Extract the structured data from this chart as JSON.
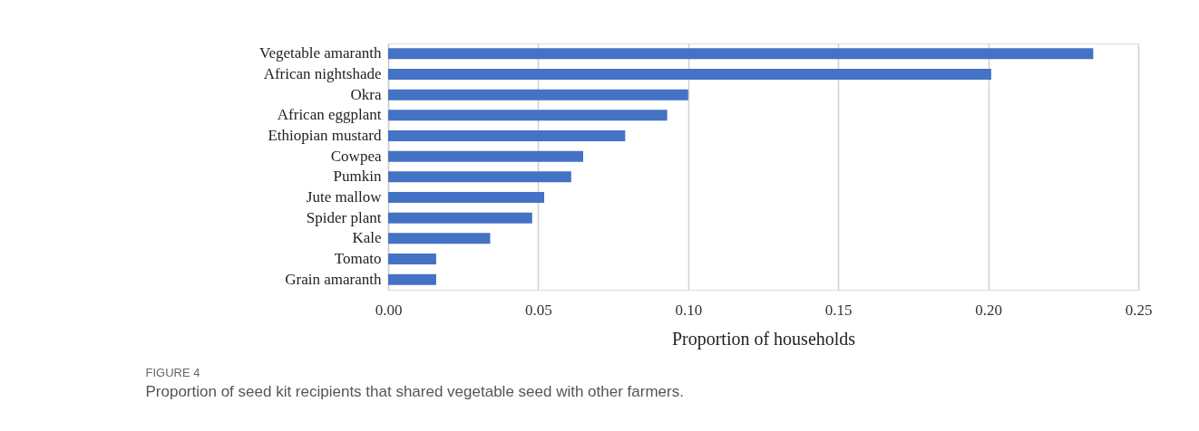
{
  "chart_data": {
    "type": "bar",
    "orientation": "horizontal",
    "xlabel": "Proportion of households",
    "categories": [
      "Vegetable amaranth",
      "African nightshade",
      "Okra",
      "African eggplant",
      "Ethiopian mustard",
      "Cowpea",
      "Pumkin",
      "Jute mallow",
      "Spider plant",
      "Kale",
      "Tomato",
      "Grain amaranth"
    ],
    "values": [
      0.235,
      0.201,
      0.1,
      0.093,
      0.079,
      0.065,
      0.061,
      0.052,
      0.048,
      0.034,
      0.016,
      0.016
    ],
    "color": "#4472c4",
    "xlim": [
      0,
      0.25
    ],
    "xticks": [
      {
        "value": 0,
        "label": "0.00"
      },
      {
        "value": 0.05,
        "label": "0.05"
      },
      {
        "value": 0.1,
        "label": "0.10"
      },
      {
        "value": 0.15,
        "label": "0.15"
      },
      {
        "value": 0.2,
        "label": "0.20"
      },
      {
        "value": 0.25,
        "label": "0.25"
      }
    ],
    "grid": "x",
    "annotations": [
      "FIGURE 4",
      "Proportion of seed kit recipients that shared vegetable seed with other farmers."
    ]
  }
}
